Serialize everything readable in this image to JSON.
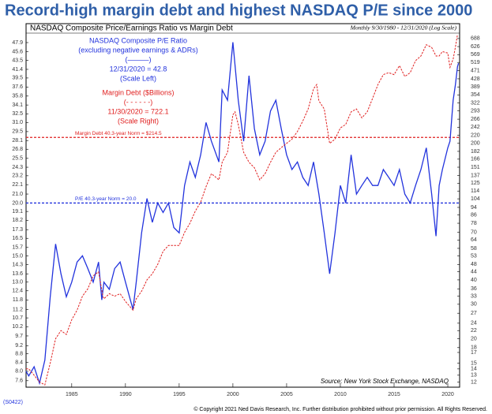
{
  "chart_data": {
    "type": "line",
    "title": "Record-high margin debt and highest NASDAQ P/E since 2000",
    "subtitle": "NASDAQ Composite Price/Earnings Ratio vs Margin Debt",
    "period_note": "Monthly 9/30/1980 - 12/31/2020 (Log Scale)",
    "log_scale": true,
    "xlim": [
      1980.75,
      2021.1
    ],
    "xticks": [
      1985,
      1990,
      1995,
      2000,
      2005,
      2010,
      2015,
      2020
    ],
    "ylim": [
      7.4,
      50
    ],
    "yticks": [
      7.6,
      {
        "value": 8,
        "label": "8.0"
      },
      8.4,
      8.8,
      9.2,
      9.7,
      10.2,
      10.7,
      11.2,
      11.8,
      12.4,
      {
        "value": 13,
        "label": "13.0"
      },
      13.6,
      14.3,
      {
        "value": 15,
        "label": "15.0"
      },
      15.7,
      16.5,
      17.3,
      18.2,
      19.1,
      {
        "value": 20,
        "label": "20.0"
      },
      {
        "value": 21,
        "label": "21.0"
      },
      22.1,
      23.2,
      24.3,
      25.5,
      26.8,
      28.1,
      29.5,
      {
        "value": 31,
        "label": "31.0"
      },
      32.5,
      34.1,
      35.8,
      37.6,
      39.5,
      41.4,
      43.5,
      45.6,
      47.9
    ],
    "y2lim": [
      11.5,
      720
    ],
    "y2ticks": [
      12,
      13,
      14,
      15,
      17,
      18,
      20,
      22,
      24,
      27,
      30,
      33,
      36,
      40,
      44,
      48,
      53,
      58,
      64,
      70,
      78,
      86,
      94,
      104,
      114,
      125,
      137,
      151,
      166,
      182,
      200,
      220,
      242,
      266,
      293,
      322,
      354,
      389,
      428,
      471,
      519,
      569,
      626,
      688
    ],
    "series": [
      {
        "name": "NASDAQ Composite P/E Ratio",
        "color": "#2233dd",
        "axis": "y",
        "dash": false,
        "x": [
          1980.75,
          1981,
          1981.5,
          1982,
          1982.5,
          1983,
          1983.5,
          1984,
          1984.5,
          1985,
          1985.5,
          1986,
          1986.5,
          1987,
          1987.5,
          1987.8,
          1988,
          1988.5,
          1989,
          1989.5,
          1990,
          1990.7,
          1991,
          1991.5,
          1992,
          1992.5,
          1993,
          1993.5,
          1994,
          1994.5,
          1995,
          1995.5,
          1996,
          1996.5,
          1997,
          1997.5,
          1998,
          1998.7,
          1999,
          1999.5,
          2000,
          2000.5,
          2001,
          2001.5,
          2002,
          2002.5,
          2003,
          2003.5,
          2004,
          2004.5,
          2005,
          2005.5,
          2006,
          2006.5,
          2007,
          2007.5,
          2008,
          2008.5,
          2009,
          2009.5,
          2010,
          2010.5,
          2011,
          2011.5,
          2012,
          2012.5,
          2013,
          2013.5,
          2014,
          2014.5,
          2015,
          2015.5,
          2016,
          2016.5,
          2017,
          2017.5,
          2018,
          2018.5,
          2018.9,
          2019.2,
          2019.5,
          2020,
          2020.2,
          2020.5,
          2020.7,
          2020.9,
          2021
        ],
        "values": [
          8,
          7.8,
          8.2,
          7.5,
          8.5,
          12,
          16,
          13.6,
          12,
          13,
          14.5,
          15,
          14,
          13,
          14.5,
          11.8,
          13,
          12.5,
          14,
          14.5,
          13,
          11.2,
          13,
          17,
          20.5,
          18,
          20,
          19,
          20,
          17.5,
          17,
          22,
          25,
          23,
          26,
          31,
          28,
          25,
          37,
          35,
          48,
          35,
          28,
          40,
          30,
          26,
          28,
          33,
          35,
          30,
          26,
          24,
          25,
          23,
          22,
          25,
          21,
          17,
          13.6,
          17,
          22,
          20,
          26,
          21,
          22,
          23,
          22,
          22,
          24,
          23,
          22,
          24,
          21,
          20,
          22,
          24,
          27,
          21,
          16.7,
          22,
          24,
          27,
          28,
          35,
          38,
          42,
          42.8
        ]
      },
      {
        "name": "Margin Debt ($Billions)",
        "color": "#e02020",
        "axis": "y2",
        "dash": true,
        "x": [
          1980.75,
          1981,
          1981.5,
          1982,
          1982.5,
          1983,
          1983.5,
          1984,
          1984.5,
          1985,
          1985.5,
          1986,
          1986.5,
          1987,
          1987.5,
          1987.9,
          1988,
          1988.5,
          1989,
          1989.5,
          1990,
          1990.7,
          1991,
          1991.5,
          1992,
          1992.5,
          1993,
          1993.5,
          1994,
          1994.5,
          1995,
          1995.5,
          1996,
          1996.5,
          1997,
          1997.5,
          1998,
          1998.7,
          1999,
          1999.5,
          2000,
          2000.2,
          2000.5,
          2001,
          2001.5,
          2002,
          2002.5,
          2003,
          2003.5,
          2004,
          2004.5,
          2005,
          2005.5,
          2006,
          2006.5,
          2007,
          2007.5,
          2007.8,
          2008,
          2008.5,
          2009,
          2009.5,
          2010,
          2010.5,
          2011,
          2011.5,
          2012,
          2012.5,
          2013,
          2013.5,
          2014,
          2014.5,
          2015,
          2015.5,
          2016,
          2016.5,
          2017,
          2017.5,
          2018,
          2018.5,
          2018.9,
          2019.2,
          2019.5,
          2020,
          2020.2,
          2020.5,
          2020.7,
          2020.9
        ],
        "values": [
          14,
          14,
          13,
          12,
          11.6,
          15,
          20,
          22,
          21,
          25,
          28,
          33,
          36,
          42,
          44,
          33,
          32,
          34,
          33,
          34,
          31,
          28,
          32,
          35,
          40,
          43,
          48,
          56,
          60,
          60,
          60,
          70,
          78,
          90,
          100,
          120,
          140,
          130,
          160,
          180,
          280,
          290,
          250,
          180,
          160,
          150,
          130,
          140,
          160,
          180,
          190,
          200,
          210,
          230,
          260,
          300,
          380,
          400,
          330,
          300,
          200,
          210,
          240,
          250,
          290,
          300,
          270,
          290,
          340,
          400,
          450,
          460,
          450,
          500,
          440,
          460,
          530,
          560,
          640,
          620,
          560,
          560,
          590,
          580,
          490,
          540,
          620,
          722.1
        ]
      }
    ],
    "annotations": [
      {
        "lines": [
          "NASDAQ Composite P/E Ratio",
          "(excluding negative earnings & ADRs)",
          "(———)",
          "12/31/2020 = 42.8",
          "(Scale Left)"
        ],
        "color": "#2233dd"
      },
      {
        "lines": [
          "Margin Debt ($Billions)",
          "(- - - - - -)",
          "11/30/2020 = 722.1",
          "(Scale Right)"
        ],
        "color": "#e02020"
      }
    ],
    "reference_lines": [
      {
        "label": "Margin Debt 40.3-year Norm = $214.5",
        "value": 214.5,
        "axis": "y2",
        "color": "#e02020"
      },
      {
        "label": "P/E 40.3-year Norm = 20.0",
        "value": 20,
        "axis": "y",
        "color": "#2233dd"
      }
    ],
    "source": "Source: New York Stock Exchange, NASDAQ",
    "code": "(S0422)",
    "copyright": "© Copyright 2021 Ned Davis Research, Inc.  Further distribution prohibited without prior permission.  All Rights Reserved."
  }
}
